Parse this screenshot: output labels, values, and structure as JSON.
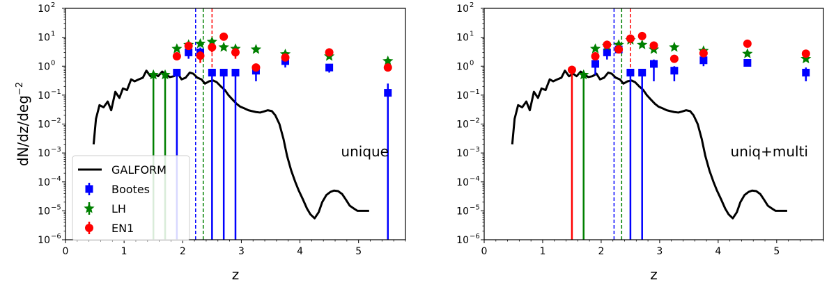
{
  "chart_data": [
    {
      "type": "scatter",
      "panel_text": "unique",
      "xlabel": "z",
      "ylabel": "dN/dz/deg",
      "ylabel_superscript": "−2",
      "xlim": [
        0,
        5.8
      ],
      "ylim": [
        1e-06,
        100
      ],
      "yscale": "log",
      "x_ticks": [
        0,
        1,
        2,
        3,
        4,
        5
      ],
      "y_ticks": [
        {
          "value": 1e-06,
          "base": "10",
          "exp": "−6"
        },
        {
          "value": 1e-05,
          "base": "10",
          "exp": "−5"
        },
        {
          "value": 0.0001,
          "base": "10",
          "exp": "−4"
        },
        {
          "value": 0.001,
          "base": "10",
          "exp": "−3"
        },
        {
          "value": 0.01,
          "base": "10",
          "exp": "−2"
        },
        {
          "value": 0.1,
          "base": "10",
          "exp": "−1"
        },
        {
          "value": 1,
          "base": "10",
          "exp": "0"
        },
        {
          "value": 10,
          "base": "10",
          "exp": "1"
        },
        {
          "value": 100,
          "base": "10",
          "exp": "2"
        }
      ],
      "legend": {
        "placement": "lower-left",
        "entries": [
          "GALFORM",
          "Bootes",
          "LH",
          "EN1"
        ]
      },
      "vlines": [
        {
          "x": 2.22,
          "color": "#0000ff"
        },
        {
          "x": 2.35,
          "color": "#008000"
        },
        {
          "x": 2.5,
          "color": "#ff0000"
        }
      ],
      "series": [
        {
          "name": "GALFORM",
          "kind": "line",
          "color": "#000000",
          "x": [
            0.48,
            0.52,
            0.58,
            0.65,
            0.72,
            0.78,
            0.85,
            0.92,
            0.98,
            1.05,
            1.12,
            1.18,
            1.25,
            1.32,
            1.38,
            1.45,
            1.52,
            1.58,
            1.65,
            1.72,
            1.78,
            1.85,
            1.92,
            1.98,
            2.05,
            2.12,
            2.18,
            2.25,
            2.32,
            2.38,
            2.45,
            2.52,
            2.58,
            2.65,
            2.72,
            2.78,
            2.85,
            2.92,
            2.98,
            3.05,
            3.12,
            3.18,
            3.25,
            3.32,
            3.38,
            3.45,
            3.52,
            3.58,
            3.65,
            3.72,
            3.78,
            3.85,
            3.92,
            3.98,
            4.05,
            4.12,
            4.18,
            4.25,
            4.32,
            4.38,
            4.45,
            4.52,
            4.58,
            4.65,
            4.72,
            4.78,
            4.85,
            4.92,
            4.98,
            5.05,
            5.12,
            5.18
          ],
          "y": [
            0.002,
            0.015,
            0.045,
            0.038,
            0.06,
            0.03,
            0.13,
            0.08,
            0.17,
            0.15,
            0.35,
            0.3,
            0.35,
            0.4,
            0.7,
            0.45,
            0.55,
            0.45,
            0.65,
            0.5,
            0.42,
            0.45,
            0.55,
            0.35,
            0.4,
            0.6,
            0.55,
            0.4,
            0.35,
            0.25,
            0.3,
            0.32,
            0.28,
            0.2,
            0.15,
            0.1,
            0.07,
            0.05,
            0.04,
            0.035,
            0.03,
            0.028,
            0.026,
            0.025,
            0.027,
            0.03,
            0.028,
            0.02,
            0.01,
            0.003,
            0.0008,
            0.00025,
            0.0001,
            5e-05,
            2.5e-05,
            1.2e-05,
            7.5e-06,
            5.5e-06,
            9e-06,
            2e-05,
            3.5e-05,
            4.5e-05,
            5e-05,
            4.8e-05,
            3.8e-05,
            2.5e-05,
            1.5e-05,
            1.2e-05,
            1e-05,
            1e-05,
            1e-05,
            1e-05
          ]
        },
        {
          "name": "Bootes",
          "kind": "points",
          "marker": "square",
          "color": "#0000ff",
          "points": [
            {
              "x": 1.9,
              "y": 0.6,
              "lo": 1e-06,
              "hi": 0.6
            },
            {
              "x": 2.1,
              "y": 3.0,
              "lo": 1.8,
              "hi": 4.4
            },
            {
              "x": 2.3,
              "y": 3.0,
              "lo": 1.8,
              "hi": 4.4
            },
            {
              "x": 2.5,
              "y": 0.6,
              "lo": 1e-06,
              "hi": 0.6
            },
            {
              "x": 2.7,
              "y": 0.6,
              "lo": 1e-06,
              "hi": 0.6
            },
            {
              "x": 2.9,
              "y": 0.6,
              "lo": 1e-06,
              "hi": 0.6
            },
            {
              "x": 3.25,
              "y": 0.7,
              "lo": 0.3,
              "hi": 1.0
            },
            {
              "x": 3.75,
              "y": 1.5,
              "lo": 0.9,
              "hi": 2.2
            },
            {
              "x": 4.5,
              "y": 0.9,
              "lo": 0.6,
              "hi": 1.2
            },
            {
              "x": 5.5,
              "y": 0.12,
              "lo": 1e-06,
              "hi": 0.25
            }
          ]
        },
        {
          "name": "LH",
          "kind": "points",
          "marker": "star",
          "color": "#008000",
          "points": [
            {
              "x": 1.5,
              "y": 0.5,
              "lo": 1e-06,
              "hi": 0.5
            },
            {
              "x": 1.7,
              "y": 0.5,
              "lo": 1e-06,
              "hi": 0.5
            },
            {
              "x": 1.9,
              "y": 4.0,
              "lo": 4.0,
              "hi": 4.0
            },
            {
              "x": 2.1,
              "y": 5.5,
              "lo": 5.5,
              "hi": 5.5
            },
            {
              "x": 2.3,
              "y": 6.0,
              "lo": 6.0,
              "hi": 6.0
            },
            {
              "x": 2.5,
              "y": 7.0,
              "lo": 7.0,
              "hi": 7.0
            },
            {
              "x": 2.7,
              "y": 4.5,
              "lo": 4.5,
              "hi": 4.5
            },
            {
              "x": 2.9,
              "y": 4.0,
              "lo": 4.0,
              "hi": 4.0
            },
            {
              "x": 3.25,
              "y": 3.8,
              "lo": 3.8,
              "hi": 3.8
            },
            {
              "x": 3.75,
              "y": 2.6,
              "lo": 2.6,
              "hi": 2.6
            },
            {
              "x": 4.5,
              "y": 2.2,
              "lo": 2.2,
              "hi": 2.2
            },
            {
              "x": 5.5,
              "y": 1.5,
              "lo": 1.5,
              "hi": 1.5
            }
          ]
        },
        {
          "name": "EN1",
          "kind": "points",
          "marker": "circle",
          "color": "#ff0000",
          "points": [
            {
              "x": 1.9,
              "y": 2.2,
              "lo": 2.2,
              "hi": 2.2
            },
            {
              "x": 2.1,
              "y": 5.0,
              "lo": 5.0,
              "hi": 5.0
            },
            {
              "x": 2.3,
              "y": 2.3,
              "lo": 1.3,
              "hi": 3.3
            },
            {
              "x": 2.5,
              "y": 4.5,
              "lo": 3.0,
              "hi": 6.0
            },
            {
              "x": 2.7,
              "y": 10.5,
              "lo": 10.5,
              "hi": 10.5
            },
            {
              "x": 2.9,
              "y": 3.0,
              "lo": 1.8,
              "hi": 4.0
            },
            {
              "x": 3.25,
              "y": 0.9,
              "lo": 0.9,
              "hi": 0.9
            },
            {
              "x": 3.75,
              "y": 2.0,
              "lo": 2.0,
              "hi": 2.0
            },
            {
              "x": 4.5,
              "y": 3.0,
              "lo": 3.0,
              "hi": 3.0
            },
            {
              "x": 5.5,
              "y": 0.9,
              "lo": 0.9,
              "hi": 0.9
            }
          ]
        }
      ]
    },
    {
      "type": "scatter",
      "panel_text": "uniq+multi",
      "xlabel": "z",
      "ylabel": "",
      "ylabel_superscript": "",
      "xlim": [
        0,
        5.8
      ],
      "ylim": [
        1e-06,
        100
      ],
      "yscale": "log",
      "x_ticks": [
        0,
        1,
        2,
        3,
        4,
        5
      ],
      "y_ticks": [
        {
          "value": 1e-06,
          "base": "10",
          "exp": "−6"
        },
        {
          "value": 1e-05,
          "base": "10",
          "exp": "−5"
        },
        {
          "value": 0.0001,
          "base": "10",
          "exp": "−4"
        },
        {
          "value": 0.001,
          "base": "10",
          "exp": "−3"
        },
        {
          "value": 0.01,
          "base": "10",
          "exp": "−2"
        },
        {
          "value": 0.1,
          "base": "10",
          "exp": "−1"
        },
        {
          "value": 1,
          "base": "10",
          "exp": "0"
        },
        {
          "value": 10,
          "base": "10",
          "exp": "1"
        },
        {
          "value": 100,
          "base": "10",
          "exp": "2"
        }
      ],
      "legend": null,
      "vlines": [
        {
          "x": 2.22,
          "color": "#0000ff"
        },
        {
          "x": 2.35,
          "color": "#008000"
        },
        {
          "x": 2.5,
          "color": "#ff0000"
        }
      ],
      "series": [
        {
          "name": "GALFORM",
          "kind": "line",
          "color": "#000000",
          "x": [
            0.48,
            0.52,
            0.58,
            0.65,
            0.72,
            0.78,
            0.85,
            0.92,
            0.98,
            1.05,
            1.12,
            1.18,
            1.25,
            1.32,
            1.38,
            1.45,
            1.52,
            1.58,
            1.65,
            1.72,
            1.78,
            1.85,
            1.92,
            1.98,
            2.05,
            2.12,
            2.18,
            2.25,
            2.32,
            2.38,
            2.45,
            2.52,
            2.58,
            2.65,
            2.72,
            2.78,
            2.85,
            2.92,
            2.98,
            3.05,
            3.12,
            3.18,
            3.25,
            3.32,
            3.38,
            3.45,
            3.52,
            3.58,
            3.65,
            3.72,
            3.78,
            3.85,
            3.92,
            3.98,
            4.05,
            4.12,
            4.18,
            4.25,
            4.32,
            4.38,
            4.45,
            4.52,
            4.58,
            4.65,
            4.72,
            4.78,
            4.85,
            4.92,
            4.98,
            5.05,
            5.12,
            5.18
          ],
          "y": [
            0.002,
            0.015,
            0.045,
            0.038,
            0.06,
            0.03,
            0.13,
            0.08,
            0.17,
            0.15,
            0.35,
            0.3,
            0.35,
            0.4,
            0.7,
            0.45,
            0.55,
            0.45,
            0.65,
            0.5,
            0.42,
            0.45,
            0.55,
            0.35,
            0.4,
            0.6,
            0.55,
            0.4,
            0.35,
            0.25,
            0.3,
            0.32,
            0.28,
            0.2,
            0.15,
            0.1,
            0.07,
            0.05,
            0.04,
            0.035,
            0.03,
            0.028,
            0.026,
            0.025,
            0.027,
            0.03,
            0.028,
            0.02,
            0.01,
            0.003,
            0.0008,
            0.00025,
            0.0001,
            5e-05,
            2.5e-05,
            1.2e-05,
            7.5e-06,
            5.5e-06,
            9e-06,
            2e-05,
            3.5e-05,
            4.5e-05,
            5e-05,
            4.8e-05,
            3.8e-05,
            2.5e-05,
            1.5e-05,
            1.2e-05,
            1e-05,
            1e-05,
            1e-05,
            1e-05
          ]
        },
        {
          "name": "Bootes",
          "kind": "points",
          "marker": "square",
          "color": "#0000ff",
          "points": [
            {
              "x": 1.9,
              "y": 1.2,
              "lo": 0.5,
              "hi": 1.7
            },
            {
              "x": 2.1,
              "y": 3.0,
              "lo": 1.7,
              "hi": 4.4
            },
            {
              "x": 2.3,
              "y": 3.8,
              "lo": 2.8,
              "hi": 5.0
            },
            {
              "x": 2.5,
              "y": 0.6,
              "lo": 1e-06,
              "hi": 0.6
            },
            {
              "x": 2.7,
              "y": 0.6,
              "lo": 1e-06,
              "hi": 0.6
            },
            {
              "x": 2.9,
              "y": 1.2,
              "lo": 0.3,
              "hi": 1.7
            },
            {
              "x": 3.25,
              "y": 0.7,
              "lo": 0.3,
              "hi": 1.0
            },
            {
              "x": 3.75,
              "y": 1.6,
              "lo": 1.0,
              "hi": 2.2
            },
            {
              "x": 4.5,
              "y": 1.3,
              "lo": 1.0,
              "hi": 1.6
            },
            {
              "x": 5.5,
              "y": 0.6,
              "lo": 0.3,
              "hi": 0.9
            }
          ]
        },
        {
          "name": "LH",
          "kind": "points",
          "marker": "star",
          "color": "#008000",
          "points": [
            {
              "x": 1.7,
              "y": 0.5,
              "lo": 1e-06,
              "hi": 0.5
            },
            {
              "x": 1.9,
              "y": 4.0,
              "lo": 4.0,
              "hi": 4.0
            },
            {
              "x": 2.1,
              "y": 5.0,
              "lo": 5.0,
              "hi": 5.0
            },
            {
              "x": 2.3,
              "y": 5.5,
              "lo": 5.5,
              "hi": 5.5
            },
            {
              "x": 2.5,
              "y": 8.0,
              "lo": 8.0,
              "hi": 8.0
            },
            {
              "x": 2.7,
              "y": 5.5,
              "lo": 5.5,
              "hi": 5.5
            },
            {
              "x": 2.9,
              "y": 3.8,
              "lo": 3.8,
              "hi": 3.8
            },
            {
              "x": 3.25,
              "y": 4.5,
              "lo": 4.5,
              "hi": 4.5
            },
            {
              "x": 3.75,
              "y": 3.4,
              "lo": 3.4,
              "hi": 3.4
            },
            {
              "x": 4.5,
              "y": 2.7,
              "lo": 2.7,
              "hi": 2.7
            },
            {
              "x": 5.5,
              "y": 1.8,
              "lo": 1.8,
              "hi": 1.8
            }
          ]
        },
        {
          "name": "EN1",
          "kind": "points",
          "marker": "circle",
          "color": "#ff0000",
          "points": [
            {
              "x": 1.5,
              "y": 0.75,
              "lo": 1e-06,
              "hi": 0.75
            },
            {
              "x": 1.9,
              "y": 2.2,
              "lo": 2.2,
              "hi": 2.2
            },
            {
              "x": 2.1,
              "y": 5.5,
              "lo": 5.5,
              "hi": 5.5
            },
            {
              "x": 2.3,
              "y": 3.8,
              "lo": 3.8,
              "hi": 3.8
            },
            {
              "x": 2.5,
              "y": 9.0,
              "lo": 9.0,
              "hi": 9.0
            },
            {
              "x": 2.7,
              "y": 11.0,
              "lo": 11.0,
              "hi": 11.0
            },
            {
              "x": 2.9,
              "y": 5.2,
              "lo": 5.2,
              "hi": 5.2
            },
            {
              "x": 3.25,
              "y": 1.8,
              "lo": 1.8,
              "hi": 1.8
            },
            {
              "x": 3.75,
              "y": 2.8,
              "lo": 2.8,
              "hi": 2.8
            },
            {
              "x": 4.5,
              "y": 6.0,
              "lo": 6.0,
              "hi": 6.0
            },
            {
              "x": 5.5,
              "y": 2.7,
              "lo": 2.7,
              "hi": 2.7
            }
          ]
        }
      ]
    }
  ]
}
